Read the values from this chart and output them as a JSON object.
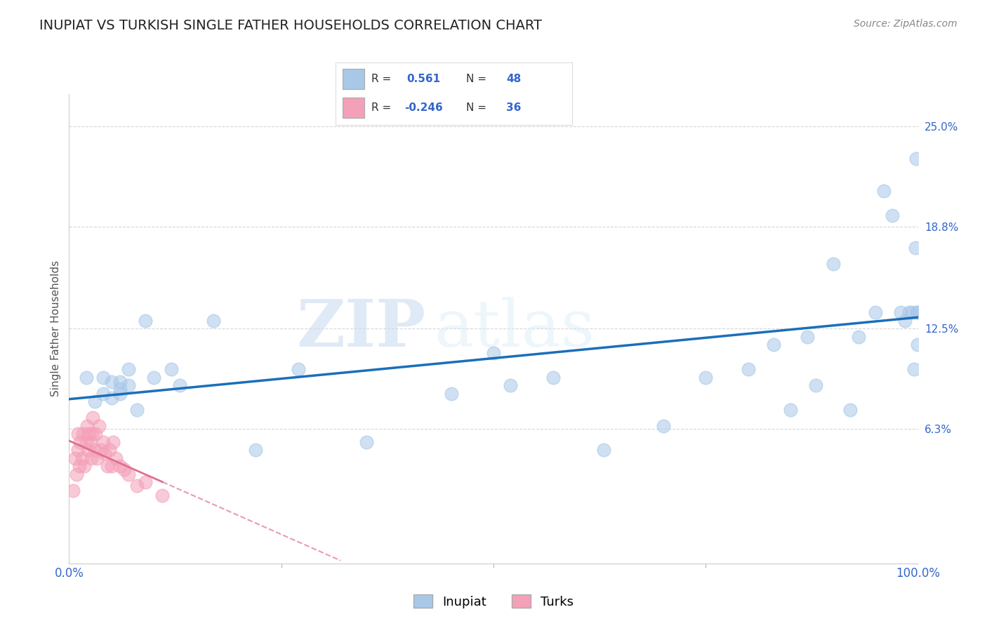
{
  "title": "INUPIAT VS TURKISH SINGLE FATHER HOUSEHOLDS CORRELATION CHART",
  "source": "Source: ZipAtlas.com",
  "ylabel": "Single Father Households",
  "xlim": [
    0,
    1.0
  ],
  "ylim": [
    -0.02,
    0.27
  ],
  "inupiat_color": "#a8c8e8",
  "turks_color": "#f4a0b8",
  "inupiat_line_color": "#1a6fba",
  "turks_line_color": "#e07090",
  "watermark_zip": "ZIP",
  "watermark_atlas": "atlas",
  "background_color": "#ffffff",
  "grid_color": "#cccccc",
  "inupiat_x": [
    0.02,
    0.03,
    0.04,
    0.04,
    0.05,
    0.05,
    0.06,
    0.06,
    0.06,
    0.07,
    0.07,
    0.08,
    0.09,
    0.1,
    0.12,
    0.13,
    0.17,
    0.22,
    0.27,
    0.35,
    0.45,
    0.5,
    0.52,
    0.57,
    0.63,
    0.7,
    0.75,
    0.8,
    0.83,
    0.85,
    0.87,
    0.88,
    0.9,
    0.92,
    0.93,
    0.95,
    0.96,
    0.97,
    0.98,
    0.985,
    0.99,
    0.993,
    0.995,
    0.997,
    0.998,
    0.999,
    0.9993,
    0.9997
  ],
  "inupiat_y": [
    0.095,
    0.08,
    0.085,
    0.095,
    0.082,
    0.092,
    0.085,
    0.092,
    0.088,
    0.09,
    0.1,
    0.075,
    0.13,
    0.095,
    0.1,
    0.09,
    0.13,
    0.05,
    0.1,
    0.055,
    0.085,
    0.11,
    0.09,
    0.095,
    0.05,
    0.065,
    0.095,
    0.1,
    0.115,
    0.075,
    0.12,
    0.09,
    0.165,
    0.075,
    0.12,
    0.135,
    0.21,
    0.195,
    0.135,
    0.13,
    0.135,
    0.135,
    0.1,
    0.175,
    0.23,
    0.135,
    0.135,
    0.115
  ],
  "turks_x": [
    0.005,
    0.007,
    0.009,
    0.01,
    0.01,
    0.012,
    0.013,
    0.015,
    0.016,
    0.018,
    0.02,
    0.021,
    0.022,
    0.023,
    0.025,
    0.026,
    0.027,
    0.028,
    0.03,
    0.031,
    0.033,
    0.035,
    0.038,
    0.04,
    0.042,
    0.045,
    0.048,
    0.05,
    0.052,
    0.055,
    0.06,
    0.065,
    0.07,
    0.08,
    0.09,
    0.11
  ],
  "turks_y": [
    0.025,
    0.045,
    0.035,
    0.05,
    0.06,
    0.04,
    0.055,
    0.045,
    0.06,
    0.04,
    0.055,
    0.065,
    0.05,
    0.06,
    0.055,
    0.045,
    0.06,
    0.07,
    0.05,
    0.06,
    0.045,
    0.065,
    0.05,
    0.055,
    0.048,
    0.04,
    0.05,
    0.04,
    0.055,
    0.045,
    0.04,
    0.038,
    0.035,
    0.028,
    0.03,
    0.022
  ]
}
